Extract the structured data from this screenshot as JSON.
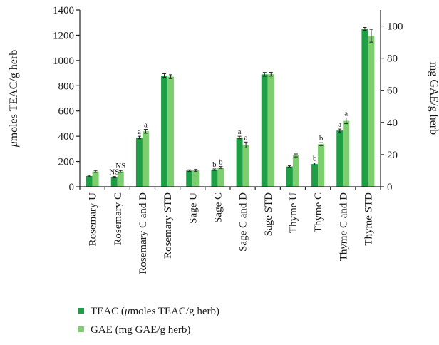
{
  "chart_data": {
    "type": "bar",
    "title": "",
    "categories": [
      "Rosemary U",
      "Rosemary C",
      "Rosemary C and D",
      "Rosemary STD",
      "Sage U",
      "Sage C",
      "Sage C and D",
      "Sage STD",
      "Thyme U",
      "Thyme C",
      "Thyme C and D",
      "Thyme STD"
    ],
    "y_left": {
      "label_prefix": "μ",
      "label_rest": "moles TEAC/g herb",
      "ylim": [
        0,
        1400
      ],
      "ticks": [
        "0",
        "200",
        "400",
        "600",
        "800",
        "1000",
        "1200",
        "1400"
      ]
    },
    "y_right": {
      "label": "mg GAE/g herb",
      "ylim": [
        0,
        110
      ],
      "ticks": [
        "0",
        "20",
        "40",
        "60",
        "80",
        "100"
      ]
    },
    "series": [
      {
        "name": "TEAC (μmoles TEAC/g herb)",
        "axis": "left",
        "color": "#1e9e45",
        "values": [
          85,
          75,
          390,
          880,
          128,
          135,
          390,
          890,
          160,
          180,
          445,
          1250
        ],
        "errors": [
          6,
          6,
          10,
          15,
          6,
          6,
          10,
          15,
          6,
          8,
          12,
          12
        ],
        "annotations": [
          "",
          "NS",
          "a",
          "",
          "",
          "b",
          "a",
          "",
          "",
          "b",
          "a",
          ""
        ]
      },
      {
        "name": "GAE (mg GAE/g herb)",
        "axis": "right",
        "color": "#7cce6e",
        "values": [
          9.5,
          9.5,
          34.5,
          68.5,
          10.2,
          12,
          26,
          70,
          19.5,
          26.5,
          41,
          94
        ],
        "errors": [
          0.6,
          0.6,
          1.2,
          1.2,
          0.6,
          0.6,
          1.8,
          1.2,
          0.9,
          0.9,
          1.8,
          4
        ],
        "annotations": [
          "",
          "NS",
          "a",
          "",
          "",
          "b",
          "a",
          "",
          "",
          "b",
          "a",
          ""
        ]
      }
    ],
    "legend": {
      "placement": "bottom-left",
      "entries": [
        {
          "prefix": "TEAC (",
          "mu": "μ",
          "rest": "moles TEAC/g herb)"
        },
        {
          "prefix": "GAE (mg GAE/g herb)",
          "mu": "",
          "rest": ""
        }
      ]
    },
    "grid": false
  }
}
